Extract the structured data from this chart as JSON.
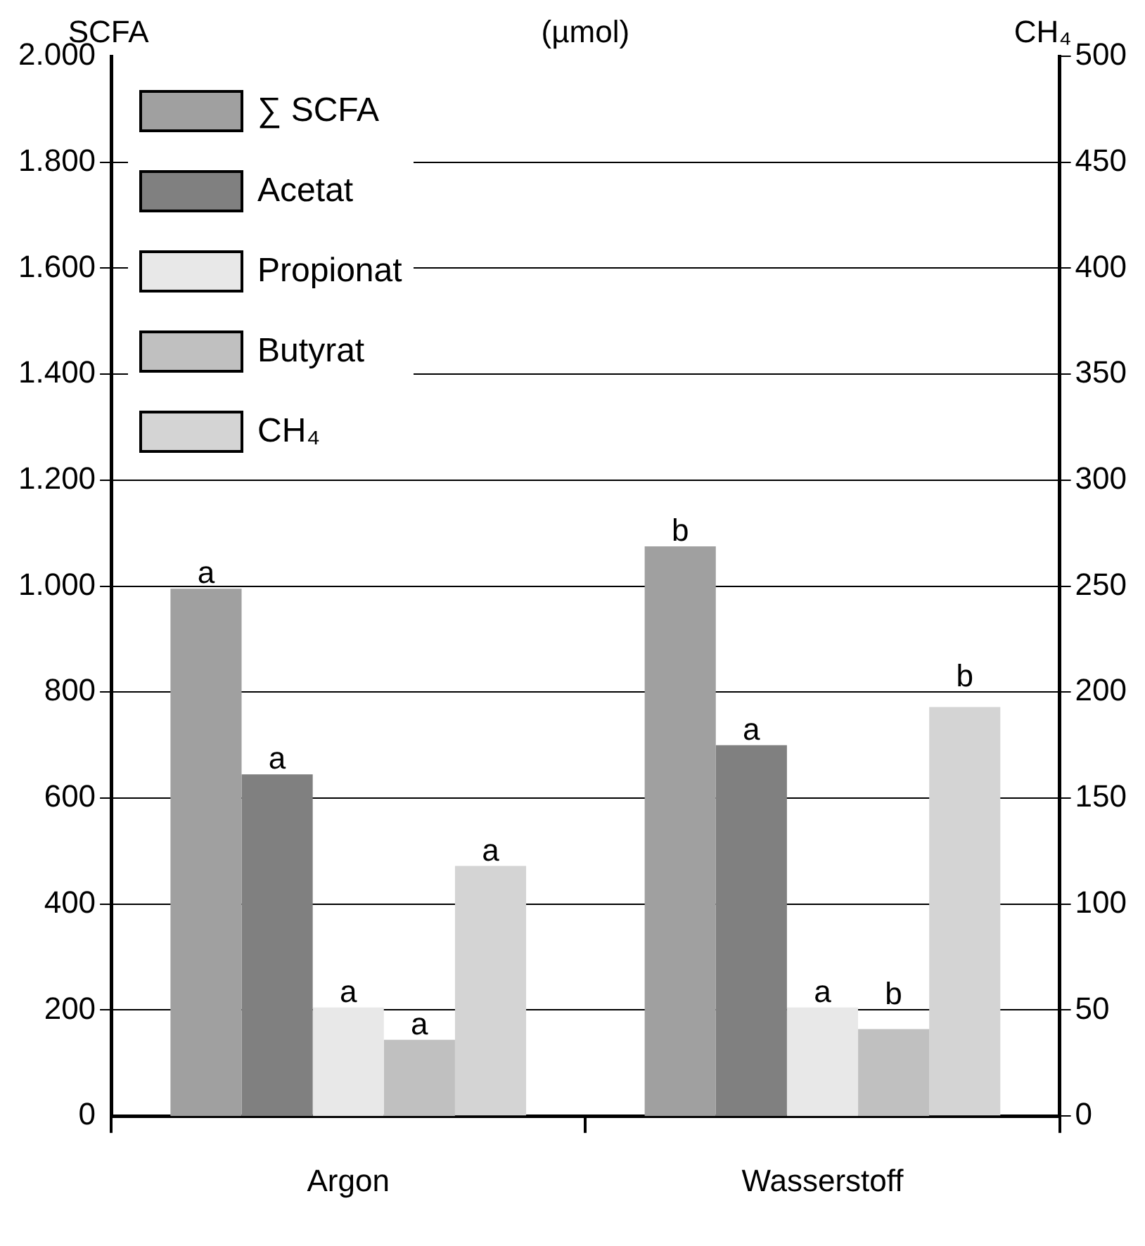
{
  "chart_data": {
    "type": "bar",
    "title": "(µmol)",
    "ylabel": "SCFA",
    "y2label": "CH₄",
    "categories": [
      "Argon",
      "Wasserstoff"
    ],
    "series": [
      {
        "name": "∑ SCFA",
        "color": "#a0a0a0",
        "values": [
          995,
          1075
        ],
        "value_labels": [
          "a",
          "b"
        ]
      },
      {
        "name": "Acetat",
        "color": "#808080",
        "values": [
          645,
          700
        ],
        "value_labels": [
          "a",
          "a"
        ]
      },
      {
        "name": "Propionat",
        "color": "#e8e8e8",
        "values": [
          205,
          205
        ],
        "value_labels": [
          "a",
          "a"
        ]
      },
      {
        "name": "Butyrat",
        "color": "#c0c0c0",
        "values": [
          144,
          164
        ],
        "value_labels": [
          "a",
          "b"
        ]
      },
      {
        "name": "CH₄",
        "color": "#d4d4d4",
        "values": [
          118,
          193
        ],
        "axis": "y2",
        "value_labels": [
          "a",
          "b"
        ]
      }
    ],
    "ylim": [
      0,
      2000
    ],
    "yticks": [
      {
        "value": 0,
        "label": "0"
      },
      {
        "value": 200,
        "label": "200"
      },
      {
        "value": 400,
        "label": "400"
      },
      {
        "value": 600,
        "label": "600"
      },
      {
        "value": 800,
        "label": "800"
      },
      {
        "value": 1000,
        "label": "1.000"
      },
      {
        "value": 1200,
        "label": "1.200"
      },
      {
        "value": 1400,
        "label": "1.400"
      },
      {
        "value": 1600,
        "label": "1.600"
      },
      {
        "value": 1800,
        "label": "1.800"
      },
      {
        "value": 2000,
        "label": "2.000"
      }
    ],
    "y2lim": [
      0,
      500
    ],
    "y2ticks": [
      0,
      50,
      100,
      150,
      200,
      250,
      300,
      350,
      400,
      450,
      500
    ],
    "grid": "y",
    "legend": "top left"
  }
}
